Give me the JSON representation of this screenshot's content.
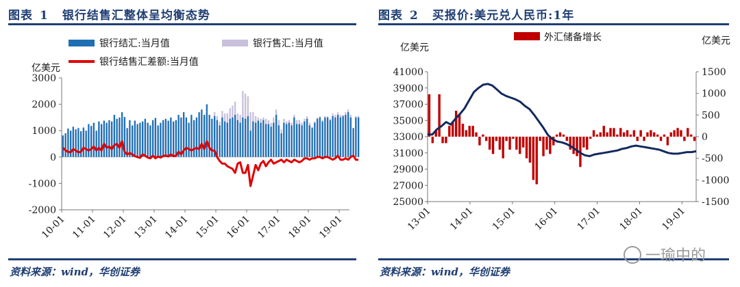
{
  "chart_data": [
    {
      "type": "bar",
      "title_prefix": "图表",
      "title_number": "1",
      "title": "银行结售汇整体呈均衡态势",
      "ylabel": "亿美元",
      "ylim": [
        -2000,
        3000
      ],
      "y_ticks": [
        "3000",
        "2000",
        "1000",
        "0",
        "-1000",
        "-2000"
      ],
      "x_ticks": [
        "10-01",
        "11-01",
        "12-01",
        "13-01",
        "14-01",
        "15-01",
        "16-01",
        "17-01",
        "18-01",
        "19-01"
      ],
      "x_range": [
        "2010-01",
        "2019-04"
      ],
      "grid": false,
      "legend_position": "top",
      "series": [
        {
          "name": "银行结汇:当月值",
          "kind": "bar",
          "color": "#1f6fb5",
          "values": [
            820,
            900,
            1080,
            1000,
            1150,
            1050,
            1100,
            980,
            1120,
            1000,
            1250,
            1180,
            1300,
            1000,
            1350,
            1250,
            1380,
            1300,
            1400,
            1350,
            1600,
            1450,
            1500,
            1700,
            1520,
            1100,
            1400,
            1200,
            1380,
            1250,
            1300,
            1350,
            1450,
            1300,
            1200,
            1400,
            1480,
            1200,
            1300,
            1400,
            1450,
            1380,
            1500,
            1350,
            1400,
            1600,
            1500,
            1700,
            1500,
            1300,
            1600,
            1400,
            1500,
            1700,
            1800,
            1600,
            2000,
            1600,
            1450,
            1550,
            1400,
            1200,
            1500,
            1350,
            1300,
            1450,
            1500,
            1600,
            1400,
            1300,
            1500,
            1450,
            1550,
            1000,
            1350,
            1300,
            1380,
            1300,
            1400,
            1250,
            1250,
            1150,
            1300,
            1600,
            1200,
            900,
            1300,
            1250,
            1300,
            1200,
            1500,
            1250,
            1250,
            1200,
            1350,
            1450,
            1200,
            1100,
            1300,
            1450,
            1500,
            1350,
            1500,
            1500,
            1400,
            1550,
            1500,
            1600,
            1500,
            1550,
            1600,
            1700,
            1500,
            1100,
            1500,
            1500
          ]
        },
        {
          "name": "银行售汇:当月值",
          "kind": "bar",
          "color": "#c8c0dc",
          "values": [
            700,
            760,
            900,
            850,
            980,
            900,
            950,
            850,
            960,
            870,
            1050,
            1000,
            1100,
            880,
            1150,
            1050,
            1180,
            1100,
            1200,
            1150,
            1350,
            1250,
            1300,
            1450,
            1300,
            950,
            1200,
            1050,
            1200,
            1100,
            1200,
            1250,
            1300,
            1200,
            1100,
            1300,
            1350,
            1100,
            1250,
            1350,
            1400,
            1300,
            1400,
            1300,
            1350,
            1500,
            1450,
            1600,
            1300,
            1100,
            1500,
            1350,
            1400,
            1550,
            1500,
            1500,
            1700,
            1450,
            1450,
            1700,
            1550,
            1350,
            1750,
            1650,
            1650,
            1850,
            1950,
            2100,
            1650,
            1600,
            2500,
            2400,
            2300,
            1700,
            1700,
            1550,
            1500,
            1450,
            1500,
            1450,
            1400,
            1300,
            1500,
            1800,
            1400,
            1050,
            1450,
            1350,
            1400,
            1300,
            1600,
            1400,
            1400,
            1300,
            1450,
            1550,
            1300,
            1150,
            1350,
            1500,
            1550,
            1400,
            1550,
            1550,
            1450,
            1650,
            1600,
            1700,
            1600,
            1600,
            1700,
            1800,
            1600,
            1100,
            1550,
            1550
          ]
        },
        {
          "name": "银行结售汇差额:当月值",
          "kind": "line",
          "color": "#e00000",
          "values": [
            350,
            250,
            200,
            180,
            300,
            250,
            180,
            200,
            350,
            300,
            250,
            300,
            400,
            250,
            350,
            250,
            500,
            350,
            400,
            300,
            450,
            500,
            350,
            600,
            200,
            100,
            150,
            100,
            30,
            0,
            -30,
            100,
            50,
            -20,
            -50,
            50,
            -50,
            20,
            -20,
            40,
            60,
            20,
            100,
            30,
            50,
            200,
            100,
            250,
            350,
            300,
            250,
            300,
            350,
            300,
            500,
            300,
            600,
            350,
            250,
            250,
            0,
            -150,
            -250,
            -250,
            -350,
            -400,
            -450,
            -600,
            -250,
            -200,
            -600,
            -600,
            -300,
            -1100,
            -700,
            -300,
            -500,
            -250,
            -150,
            -350,
            -200,
            -100,
            -250,
            -200,
            -150,
            -100,
            -200,
            -100,
            -150,
            -200,
            -100,
            -150,
            -200,
            -150,
            -50,
            -50,
            -100,
            -50,
            -50,
            0,
            0,
            -50,
            0,
            0,
            -50,
            -100,
            -50,
            50,
            -100,
            -100,
            -50,
            -100,
            0,
            50,
            -100,
            -100
          ]
        }
      ],
      "source": "资料来源：wind，华创证券"
    },
    {
      "type": "bar+line",
      "title_prefix": "图表",
      "title_number": "2",
      "title": "买报价:美元兑人民币:1年",
      "ylabel_left": "亿美元",
      "ylabel_right": "亿美元",
      "ylim_left": [
        25000,
        41000
      ],
      "ylim_right": [
        -1500,
        1500
      ],
      "y_ticks_left": [
        "41000",
        "39000",
        "37000",
        "35000",
        "33000",
        "31000",
        "29000",
        "27000",
        "25000"
      ],
      "y_ticks_right": [
        "1500",
        "1000",
        "500",
        "0",
        "-500",
        "-1000",
        "-1500"
      ],
      "x_ticks": [
        "13-01",
        "14-01",
        "15-01",
        "16-01",
        "17-01",
        "18-01",
        "19-01"
      ],
      "x_range": [
        "2013-01",
        "2019-04"
      ],
      "grid": false,
      "legend_position": "top",
      "series": [
        {
          "name": "外汇储备增长",
          "kind": "bar",
          "axis": "right",
          "color": "#c00000",
          "values": [
            980,
            -150,
            150,
            980,
            -150,
            -150,
            250,
            350,
            600,
            500,
            300,
            150,
            250,
            250,
            100,
            -200,
            50,
            -100,
            -300,
            -400,
            -100,
            -300,
            -500,
            -100,
            -300,
            -50,
            -300,
            -400,
            -250,
            -500,
            -600,
            -1000,
            -1100,
            -100,
            -450,
            -300,
            -400,
            -200,
            50,
            100,
            50,
            -100,
            -300,
            -400,
            -450,
            -700,
            -250,
            -300,
            -50,
            150,
            50,
            100,
            250,
            100,
            200,
            200,
            50,
            200,
            100,
            150,
            50,
            150,
            -100,
            150,
            -100,
            100,
            150,
            100,
            50,
            -100,
            50,
            -200,
            100,
            150,
            200,
            150,
            -100,
            200,
            50,
            -100
          ]
        },
        {
          "name": "",
          "kind": "line",
          "axis": "left",
          "color": "#13285e",
          "values": [
            33300,
            33250,
            33900,
            34300,
            34800,
            34500,
            35200,
            35800,
            36500,
            37500,
            38500,
            39000,
            39400,
            39500,
            39300,
            38800,
            38300,
            38000,
            37800,
            37600,
            37300,
            36800,
            36400,
            35700,
            34900,
            34100,
            33200,
            32700,
            32400,
            32300,
            32100,
            31800,
            31400,
            31000,
            30700,
            30600,
            30800,
            30900,
            31000,
            31100,
            31200,
            31300,
            31500,
            31600,
            31800,
            31900,
            31800,
            31700,
            31600,
            31500,
            31400,
            31200,
            31000,
            30900,
            30900,
            31000,
            31100,
            31100,
            31200
          ]
        }
      ],
      "source": "资料来源：wind，华创证券"
    }
  ],
  "watermark": "一瑜中的"
}
